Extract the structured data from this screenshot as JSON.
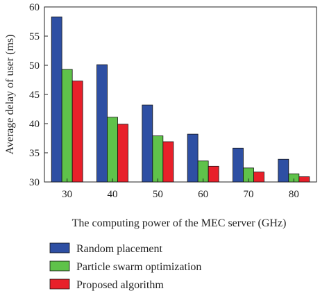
{
  "chart_data": {
    "type": "bar",
    "xlabel": "The computing power of the MEC server (GHz)",
    "ylabel": "Average delay of user (ms)",
    "categories": [
      "30",
      "40",
      "50",
      "60",
      "70",
      "80"
    ],
    "ylim": [
      30,
      60
    ],
    "yticks": [
      30,
      35,
      40,
      45,
      50,
      55,
      60
    ],
    "grid": false,
    "legend_position": "below",
    "series": [
      {
        "name": "Random placement",
        "color": "#2e4fa3",
        "values": [
          58.3,
          50.1,
          43.2,
          38.2,
          35.8,
          33.9
        ]
      },
      {
        "name": "Particle swarm optimization",
        "color": "#5fc24a",
        "values": [
          49.3,
          41.1,
          37.9,
          33.6,
          32.4,
          31.4
        ]
      },
      {
        "name": "Proposed algorithm",
        "color": "#e8202a",
        "values": [
          47.3,
          39.9,
          36.9,
          32.7,
          31.7,
          30.9
        ]
      }
    ]
  }
}
